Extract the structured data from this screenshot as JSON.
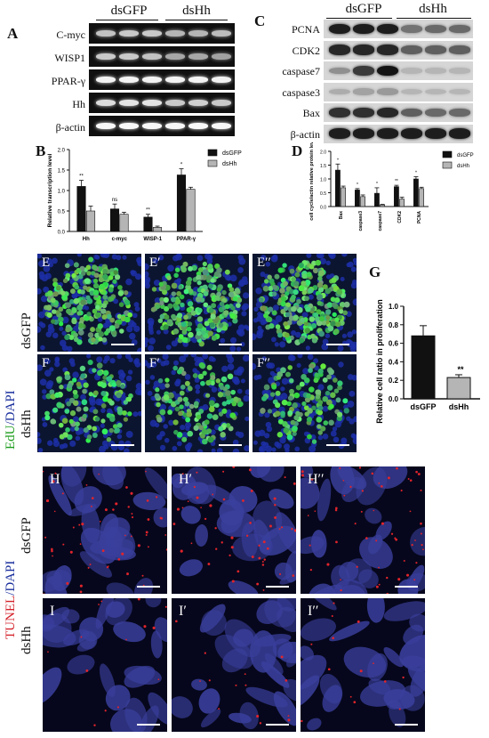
{
  "panels": {
    "A": "A",
    "B": "B",
    "C": "C",
    "D": "D",
    "G": "G"
  },
  "groups": {
    "ctrl": "dsGFP",
    "treat": "dsHh"
  },
  "panelA": {
    "rows": [
      "C-myc",
      "WISP1",
      "PPAR-γ",
      "Hh",
      "β-actin"
    ]
  },
  "panelC": {
    "rows": [
      "PCNA",
      "CDK2",
      "caspase7",
      "caspase3",
      "Bax",
      "β-actin"
    ]
  },
  "panelB": {
    "chart_data": {
      "type": "bar",
      "ylabel": "Relative transcription level",
      "categories": [
        "Hh",
        "c-myc",
        "WISP-1",
        "PPAR-γ"
      ],
      "ylim": [
        0,
        2.0
      ],
      "yticks": [
        "0.0",
        "0.5",
        "1.0",
        "1.5",
        "2.0"
      ],
      "series": [
        {
          "name": "dsGFP",
          "values": [
            1.1,
            0.55,
            0.35,
            1.38
          ],
          "err": [
            0.15,
            0.12,
            0.07,
            0.15
          ]
        },
        {
          "name": "dsHh",
          "values": [
            0.5,
            0.42,
            0.1,
            1.03
          ],
          "err": [
            0.12,
            0.05,
            0.03,
            0.05
          ]
        }
      ],
      "annotations": [
        "**",
        "ns",
        "**",
        "*"
      ]
    }
  },
  "panelD": {
    "chart_data": {
      "type": "bar",
      "ylabel": "cell cycle/actin relative protein level",
      "categories": [
        "Bax",
        "caspase3",
        "caspase7",
        "CDK2",
        "PCNA"
      ],
      "ylim": [
        0,
        2.0
      ],
      "yticks": [
        "0.0",
        "0.5",
        "1.0",
        "1.5",
        "2.0"
      ],
      "series": [
        {
          "name": "dsGFP",
          "values": [
            1.32,
            0.6,
            0.48,
            0.72,
            1.0
          ],
          "err": [
            0.22,
            0.05,
            0.2,
            0.05,
            0.08
          ]
        },
        {
          "name": "dsHh",
          "values": [
            0.68,
            0.36,
            0.06,
            0.27,
            0.65
          ],
          "err": [
            0.06,
            0.06,
            0.02,
            0.07,
            0.05
          ]
        }
      ],
      "annotations": [
        "*",
        "*",
        "*",
        "**",
        "*"
      ]
    }
  },
  "panelG": {
    "chart_data": {
      "type": "bar",
      "ylabel": "Relative cell ratio in proliferation",
      "categories": [
        "dsGFP",
        "dsHh"
      ],
      "ylim": [
        0,
        1.0
      ],
      "yticks": [
        "0.0",
        "0.2",
        "0.4",
        "0.6",
        "0.8",
        "1.0"
      ],
      "series": [
        {
          "name": "",
          "values": [
            0.68,
            0.23
          ],
          "err": [
            0.11,
            0.03
          ]
        }
      ],
      "annotations": [
        "",
        "**"
      ]
    }
  },
  "edu": {
    "stain_green": "EdU",
    "stain_sep": "/",
    "stain_blue": "DAPI",
    "row1": [
      "E",
      "E′",
      "E′′"
    ],
    "row2": [
      "F",
      "F′",
      "F′′"
    ],
    "row1_group": "dsGFP",
    "row2_group": "dsHh"
  },
  "tunel": {
    "stain_red": "TUNEL",
    "stain_sep": "/",
    "stain_blue": "DAPI",
    "row1": [
      "H",
      "H′",
      "H′′"
    ],
    "row2": [
      "I",
      "I′",
      "I′′"
    ],
    "row1_group": "dsGFP",
    "row2_group": "dsHh"
  },
  "colors": {
    "ctrl_bar": "#111111",
    "treat_bar": "#b5b5b5",
    "edu_green": "#3ddc3d",
    "dapi_blue": "#1d2fa8",
    "tunel_red": "#e2242b"
  }
}
